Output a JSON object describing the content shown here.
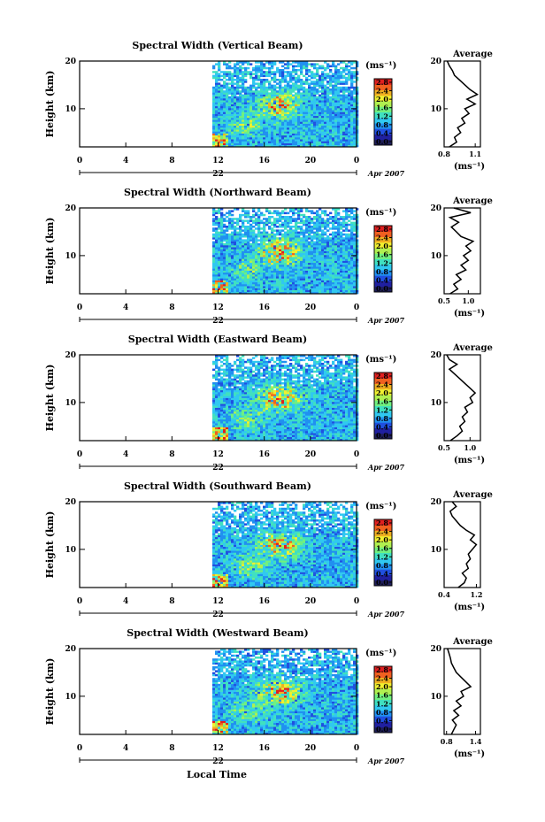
{
  "figure": {
    "xlabel": "Local Time",
    "date_label": "Apr 2007",
    "colorbar_unit": "(ms⁻¹)",
    "avg_title": "Average",
    "avg_xlabel": "(ms⁻¹)",
    "colorscale": [
      "#1e1e5a",
      "#2020a0",
      "#2050e0",
      "#2090f0",
      "#30c8f0",
      "#40e0c0",
      "#70f080",
      "#b0f050",
      "#f0f030",
      "#f0b020",
      "#f06020",
      "#e02020"
    ]
  },
  "chart_data": [
    {
      "type": "heatmap",
      "title": "Spectral Width (Vertical Beam)",
      "ylabel": "Height (km)",
      "xticks": [
        "0",
        "4",
        "8",
        "12",
        "16",
        "20",
        "0"
      ],
      "day_label": "22",
      "yticks": [
        "20",
        "10"
      ],
      "ylim": [
        2,
        20
      ],
      "colorbar_ticks": [
        "2.8",
        "2.4",
        "2.0",
        "1.6",
        "1.2",
        "0.8",
        "0.4",
        "0.0"
      ],
      "average": {
        "xticks": [
          "0.8",
          "1.1"
        ],
        "xlim": [
          0.8,
          1.15
        ],
        "heights": [
          2,
          3,
          4,
          5,
          6,
          7,
          8,
          9,
          10,
          11,
          12,
          13,
          14,
          15,
          16,
          17,
          18,
          19,
          20
        ],
        "values": [
          0.85,
          0.92,
          0.9,
          0.96,
          0.93,
          1.0,
          0.97,
          1.04,
          1.0,
          1.1,
          1.02,
          1.12,
          1.05,
          1.0,
          0.95,
          0.9,
          0.88,
          0.85,
          0.83
        ]
      }
    },
    {
      "type": "heatmap",
      "title": "Spectral Width (Northward Beam)",
      "ylabel": "Height (km)",
      "xticks": [
        "0",
        "4",
        "8",
        "12",
        "16",
        "20",
        "0"
      ],
      "day_label": "22",
      "yticks": [
        "20",
        "10"
      ],
      "ylim": [
        2,
        20
      ],
      "colorbar_ticks": [
        "2.8",
        "2.4",
        "2.0",
        "1.6",
        "1.2",
        "0.8",
        "0.4",
        "0.0"
      ],
      "average": {
        "xticks": [
          "0.5",
          "1.0"
        ],
        "xlim": [
          0.5,
          1.25
        ],
        "heights": [
          2,
          3,
          4,
          5,
          6,
          7,
          8,
          9,
          10,
          11,
          12,
          13,
          14,
          15,
          16,
          17,
          18,
          19,
          20
        ],
        "values": [
          0.62,
          0.78,
          0.7,
          0.85,
          0.75,
          0.95,
          0.85,
          1.0,
          0.9,
          1.05,
          0.95,
          1.1,
          0.85,
          0.75,
          0.65,
          0.8,
          0.62,
          1.05,
          0.7
        ]
      }
    },
    {
      "type": "heatmap",
      "title": "Spectral Width (Eastward Beam)",
      "ylabel": "Height (km)",
      "xticks": [
        "0",
        "4",
        "8",
        "12",
        "16",
        "20",
        "0"
      ],
      "day_label": "22",
      "yticks": [
        "20",
        "10"
      ],
      "ylim": [
        2,
        20
      ],
      "colorbar_ticks": [
        "2.8",
        "2.4",
        "2.0",
        "1.6",
        "1.2",
        "0.8",
        "0.4",
        "0.0"
      ],
      "average": {
        "xticks": [
          "0.5",
          "1.0"
        ],
        "xlim": [
          0.5,
          1.2
        ],
        "heights": [
          2,
          3,
          4,
          5,
          6,
          7,
          8,
          9,
          10,
          11,
          12,
          13,
          14,
          15,
          16,
          17,
          18,
          19,
          20
        ],
        "values": [
          0.62,
          0.75,
          0.85,
          0.8,
          0.9,
          0.85,
          0.95,
          0.9,
          1.05,
          1.0,
          1.1,
          1.0,
          0.9,
          0.8,
          0.7,
          0.6,
          0.75,
          0.6,
          0.55
        ]
      }
    },
    {
      "type": "heatmap",
      "title": "Spectral Width (Southward Beam)",
      "ylabel": "Height (km)",
      "xticks": [
        "0",
        "4",
        "8",
        "12",
        "16",
        "20",
        "0"
      ],
      "day_label": "22",
      "yticks": [
        "20",
        "10"
      ],
      "ylim": [
        2,
        20
      ],
      "colorbar_ticks": [
        "2.8",
        "2.4",
        "2.0",
        "1.6",
        "1.2",
        "0.8",
        "0.4",
        "0.0"
      ],
      "average": {
        "xticks": [
          "0.4",
          "1.2"
        ],
        "xlim": [
          0.4,
          1.3
        ],
        "heights": [
          2,
          3,
          4,
          5,
          6,
          7,
          8,
          9,
          10,
          11,
          12,
          13,
          14,
          15,
          16,
          17,
          18,
          19,
          20
        ],
        "values": [
          0.75,
          0.9,
          0.95,
          0.85,
          1.0,
          0.95,
          1.05,
          1.0,
          1.1,
          1.2,
          1.05,
          1.15,
          0.95,
          0.8,
          0.7,
          0.6,
          0.55,
          0.7,
          0.6
        ]
      }
    },
    {
      "type": "heatmap",
      "title": "Spectral Width (Westward Beam)",
      "ylabel": "Height (km)",
      "xticks": [
        "0",
        "4",
        "8",
        "12",
        "16",
        "20",
        "0"
      ],
      "day_label": "22",
      "yticks": [
        "20",
        "10"
      ],
      "ylim": [
        2,
        20
      ],
      "colorbar_ticks": [
        "2.8",
        "2.4",
        "2.0",
        "1.6",
        "1.2",
        "0.8",
        "0.4",
        "0.0"
      ],
      "average": {
        "xticks": [
          "0.8",
          "1.4"
        ],
        "xlim": [
          0.75,
          1.5
        ],
        "heights": [
          2,
          3,
          4,
          5,
          6,
          7,
          8,
          9,
          10,
          11,
          12,
          13,
          14,
          15,
          16,
          17,
          18,
          19,
          20
        ],
        "values": [
          0.9,
          0.95,
          1.0,
          0.92,
          1.05,
          0.95,
          1.1,
          1.0,
          1.15,
          1.1,
          1.3,
          1.2,
          1.1,
          1.0,
          0.95,
          0.9,
          0.88,
          0.85,
          0.82
        ]
      }
    }
  ]
}
